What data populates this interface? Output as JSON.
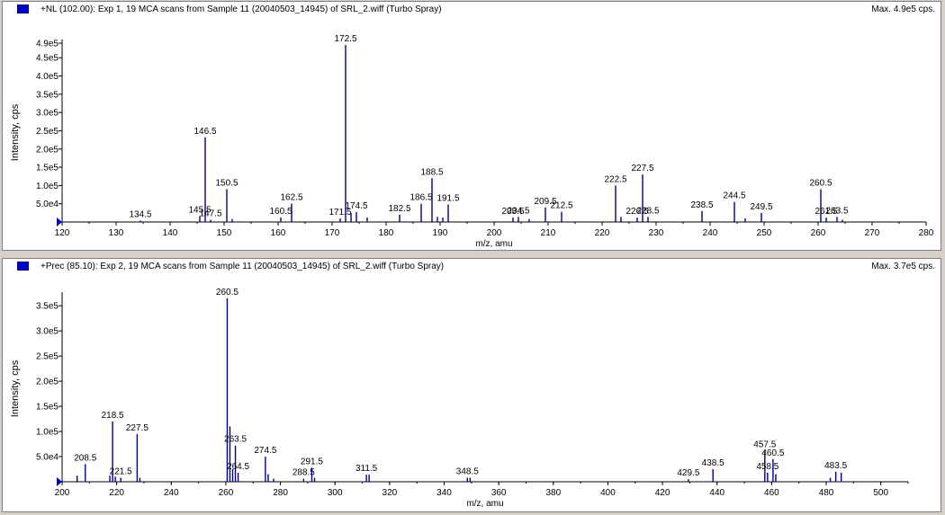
{
  "chart_data": [
    {
      "type": "bar",
      "title": "+NL (102.00): Exp 1, 19 MCA scans from Sample 11 (20040503_14945) of SRL_2.wiff (Turbo Spray)",
      "max_label": "Max. 4.9e5 cps.",
      "xlabel": "m/z, amu",
      "ylabel": "Intensity, cps",
      "xlim": [
        120,
        280
      ],
      "ylim": [
        0,
        490000
      ],
      "x_ticks": [
        120,
        130,
        140,
        150,
        160,
        170,
        180,
        190,
        200,
        210,
        220,
        230,
        240,
        250,
        260,
        270,
        280
      ],
      "x_tick_labels": [
        "120",
        "130",
        "140",
        "150",
        "160",
        "170",
        "180",
        "190",
        "200",
        "210",
        "220",
        "230",
        "240",
        "250",
        "260",
        "270",
        "280"
      ],
      "y_ticks": [
        50000,
        100000,
        150000,
        200000,
        250000,
        300000,
        350000,
        400000,
        450000,
        490000
      ],
      "y_tick_labels": [
        "5.0e4",
        "1.0e5",
        "1.5e5",
        "2.0e5",
        "2.5e5",
        "3.0e5",
        "3.5e5",
        "4.0e5",
        "4.5e5",
        "4.9e5"
      ],
      "peaks": [
        {
          "x": 134.5,
          "y": 4000,
          "label": "134.5"
        },
        {
          "x": 145.5,
          "y": 16000,
          "label": "145.5"
        },
        {
          "x": 146.5,
          "y": 232000,
          "label": "146.5"
        },
        {
          "x": 147.5,
          "y": 6000,
          "label": "147.5"
        },
        {
          "x": 150.5,
          "y": 90000,
          "label": "150.5"
        },
        {
          "x": 151.5,
          "y": 8000,
          "label": ""
        },
        {
          "x": 160.5,
          "y": 12000,
          "label": "160.5"
        },
        {
          "x": 162.5,
          "y": 50000,
          "label": "162.5"
        },
        {
          "x": 171.5,
          "y": 10000,
          "label": "171.5"
        },
        {
          "x": 172.5,
          "y": 485000,
          "label": "172.5"
        },
        {
          "x": 173.5,
          "y": 25000,
          "label": ""
        },
        {
          "x": 174.5,
          "y": 27000,
          "label": "174.5"
        },
        {
          "x": 176.5,
          "y": 12000,
          "label": ""
        },
        {
          "x": 182.5,
          "y": 20000,
          "label": "182.5"
        },
        {
          "x": 186.5,
          "y": 50000,
          "label": "186.5"
        },
        {
          "x": 188.5,
          "y": 120000,
          "label": "188.5"
        },
        {
          "x": 189.5,
          "y": 14000,
          "label": ""
        },
        {
          "x": 190.5,
          "y": 12000,
          "label": ""
        },
        {
          "x": 191.5,
          "y": 48000,
          "label": "191.5"
        },
        {
          "x": 203.5,
          "y": 12000,
          "label": "203.5"
        },
        {
          "x": 204.5,
          "y": 14000,
          "label": "204.5"
        },
        {
          "x": 206.5,
          "y": 8000,
          "label": ""
        },
        {
          "x": 209.5,
          "y": 40000,
          "label": "209.5"
        },
        {
          "x": 212.5,
          "y": 28000,
          "label": "212.5"
        },
        {
          "x": 222.5,
          "y": 100000,
          "label": "222.5"
        },
        {
          "x": 223.5,
          "y": 14000,
          "label": ""
        },
        {
          "x": 226.5,
          "y": 12000,
          "label": "226.5"
        },
        {
          "x": 227.5,
          "y": 130000,
          "label": "227.5"
        },
        {
          "x": 228.5,
          "y": 14000,
          "label": "228.5"
        },
        {
          "x": 238.5,
          "y": 30000,
          "label": "238.5"
        },
        {
          "x": 244.5,
          "y": 55000,
          "label": "244.5"
        },
        {
          "x": 246.5,
          "y": 10000,
          "label": ""
        },
        {
          "x": 249.5,
          "y": 25000,
          "label": "249.5"
        },
        {
          "x": 260.5,
          "y": 90000,
          "label": "260.5"
        },
        {
          "x": 261.5,
          "y": 12000,
          "label": "261.5"
        },
        {
          "x": 263.5,
          "y": 14000,
          "label": "263.5"
        },
        {
          "x": 264.5,
          "y": 6000,
          "label": ""
        }
      ]
    },
    {
      "type": "bar",
      "title": "+Prec (85.10): Exp 2, 19 MCA scans from Sample 11 (20040503_14945) of SRL_2.wiff (Turbo Spray)",
      "max_label": "Max. 3.7e5 cps.",
      "xlabel": "m/z, amu",
      "ylabel": "Intensity, cps",
      "xlim": [
        200,
        510
      ],
      "ylim": [
        0,
        370000
      ],
      "x_ticks": [
        200,
        220,
        240,
        260,
        280,
        300,
        320,
        340,
        360,
        380,
        400,
        420,
        440,
        460,
        480,
        500
      ],
      "x_tick_labels": [
        "200",
        "220",
        "240",
        "260",
        "280",
        "300",
        "320",
        "340",
        "360",
        "380",
        "400",
        "420",
        "440",
        "460",
        "480",
        "500"
      ],
      "y_ticks": [
        50000,
        100000,
        150000,
        200000,
        250000,
        300000,
        350000
      ],
      "y_tick_labels": [
        "5.0e4",
        "1.0e5",
        "1.5e5",
        "2.0e5",
        "2.5e5",
        "3.0e5",
        "3.5e5"
      ],
      "peaks": [
        {
          "x": 205.5,
          "y": 12000,
          "label": ""
        },
        {
          "x": 208.5,
          "y": 35000,
          "label": "208.5"
        },
        {
          "x": 217.5,
          "y": 12000,
          "label": ""
        },
        {
          "x": 218.5,
          "y": 120000,
          "label": "218.5"
        },
        {
          "x": 219.5,
          "y": 10000,
          "label": ""
        },
        {
          "x": 221.5,
          "y": 8000,
          "label": "221.5"
        },
        {
          "x": 227.5,
          "y": 95000,
          "label": "227.5"
        },
        {
          "x": 228.5,
          "y": 8000,
          "label": ""
        },
        {
          "x": 260.5,
          "y": 365000,
          "label": "260.5"
        },
        {
          "x": 261.5,
          "y": 110000,
          "label": ""
        },
        {
          "x": 262.5,
          "y": 25000,
          "label": ""
        },
        {
          "x": 263.5,
          "y": 72000,
          "label": "263.5"
        },
        {
          "x": 264.5,
          "y": 18000,
          "label": "264.5"
        },
        {
          "x": 274.5,
          "y": 50000,
          "label": "274.5"
        },
        {
          "x": 275.5,
          "y": 15000,
          "label": ""
        },
        {
          "x": 277.5,
          "y": 6000,
          "label": ""
        },
        {
          "x": 288.5,
          "y": 6000,
          "label": "288.5"
        },
        {
          "x": 291.5,
          "y": 28000,
          "label": "291.5"
        },
        {
          "x": 292.5,
          "y": 8000,
          "label": ""
        },
        {
          "x": 311.5,
          "y": 14000,
          "label": "311.5"
        },
        {
          "x": 312.5,
          "y": 14000,
          "label": ""
        },
        {
          "x": 348.5,
          "y": 8000,
          "label": "348.5"
        },
        {
          "x": 349.5,
          "y": 8000,
          "label": ""
        },
        {
          "x": 429.5,
          "y": 5000,
          "label": "429.5"
        },
        {
          "x": 438.5,
          "y": 25000,
          "label": "438.5"
        },
        {
          "x": 457.5,
          "y": 62000,
          "label": "457.5"
        },
        {
          "x": 458.5,
          "y": 18000,
          "label": "458.5"
        },
        {
          "x": 460.5,
          "y": 45000,
          "label": "460.5"
        },
        {
          "x": 461.5,
          "y": 15000,
          "label": ""
        },
        {
          "x": 481.5,
          "y": 8000,
          "label": ""
        },
        {
          "x": 483.5,
          "y": 20000,
          "label": "483.5"
        },
        {
          "x": 485.5,
          "y": 18000,
          "label": ""
        }
      ]
    }
  ],
  "colors": {
    "peak": "#00008b",
    "axis": "#000000",
    "marker": "#0000cc"
  }
}
